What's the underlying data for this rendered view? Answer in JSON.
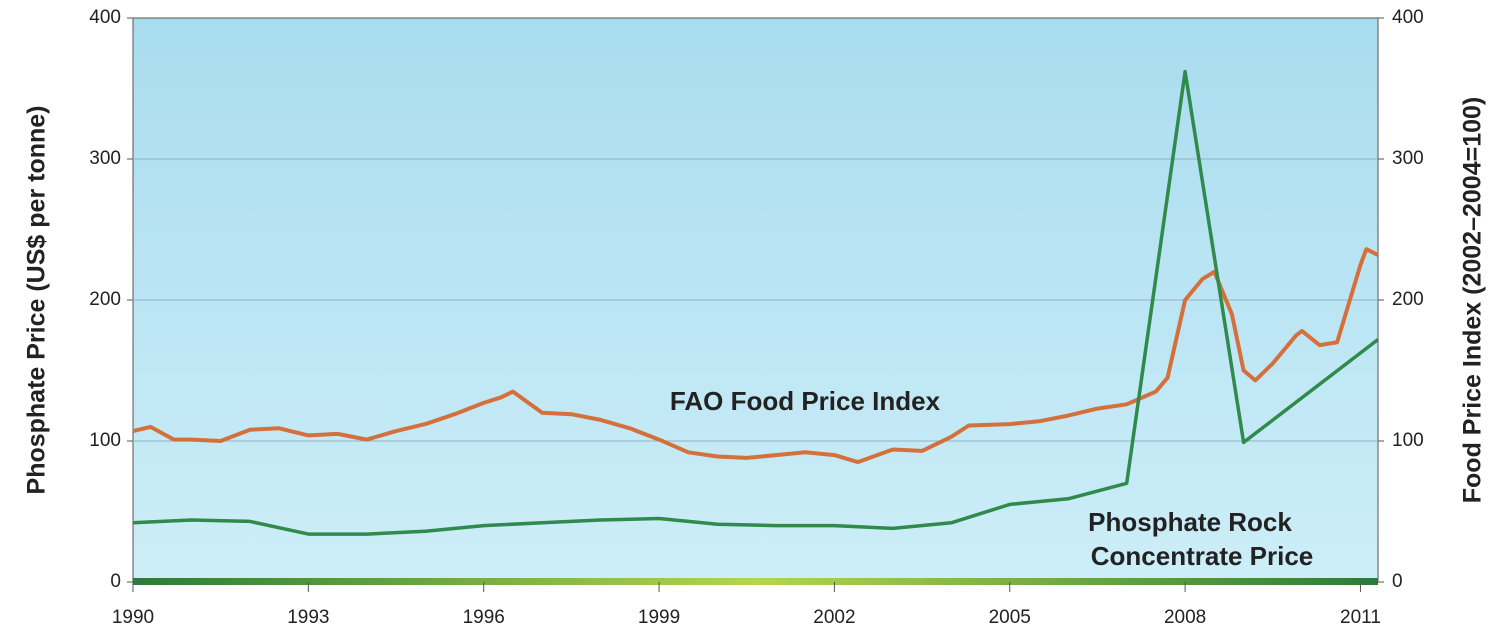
{
  "chart_data": {
    "type": "line",
    "ylabel": "Phosphate Price (US$ per tonne)",
    "y2label": "Food Price Index (2002–2004=100)",
    "xlim": [
      1990,
      2011.3
    ],
    "xticks": [
      1990,
      1993,
      1996,
      1999,
      2002,
      2005,
      2008,
      2011
    ],
    "ylim": [
      0,
      400
    ],
    "yticks": [
      0,
      100,
      200,
      300,
      400
    ],
    "y2lim": [
      0,
      400
    ],
    "y2ticks": [
      0,
      100,
      200,
      300,
      400
    ],
    "grid": true,
    "annotations": [
      "FAO Food Price Index",
      "Phosphate Rock",
      "Concentrate Price"
    ],
    "series": [
      {
        "name": "FAO Food Price Index",
        "color": "#d4703c",
        "axis": "y2",
        "x": [
          1990,
          1990.3,
          1990.7,
          1991,
          1991.5,
          1992,
          1992.5,
          1993,
          1993.5,
          1994,
          1994.5,
          1995,
          1995.5,
          1996,
          1996.3,
          1996.5,
          1997,
          1997.5,
          1998,
          1998.5,
          1999,
          1999.5,
          2000,
          2000.5,
          2001,
          2001.5,
          2002,
          2002.4,
          2003,
          2003.5,
          2004,
          2004.3,
          2005,
          2005.5,
          2006,
          2006.5,
          2007,
          2007.5,
          2007.7,
          2008,
          2008.3,
          2008.5,
          2008.8,
          2009,
          2009.2,
          2009.5,
          2009.9,
          2010,
          2010.3,
          2010.6,
          2011,
          2011.1,
          2011.3
        ],
        "values": [
          107,
          110,
          101,
          101,
          100,
          108,
          109,
          104,
          105,
          101,
          107,
          112,
          119,
          127,
          131,
          135,
          120,
          119,
          115,
          109,
          101,
          92,
          89,
          88,
          90,
          92,
          90,
          85,
          94,
          93,
          103,
          111,
          112,
          114,
          118,
          123,
          126,
          135,
          145,
          200,
          215,
          220,
          190,
          150,
          143,
          155,
          175,
          178,
          168,
          170,
          225,
          236,
          232
        ]
      },
      {
        "name": "Phosphate Rock Concentrate Price",
        "color": "#2f8a4c",
        "x": [
          1990,
          1991,
          1992,
          1993,
          1994,
          1995,
          1996,
          1997,
          1998,
          1999,
          2000,
          2001,
          2002,
          2003,
          2004,
          2005,
          2006,
          2007,
          2008,
          2009,
          2011.3
        ],
        "values": [
          42,
          44,
          43,
          34,
          34,
          36,
          40,
          42,
          44,
          45,
          41,
          40,
          40,
          38,
          42,
          55,
          59,
          70,
          362,
          99,
          172
        ]
      }
    ]
  }
}
